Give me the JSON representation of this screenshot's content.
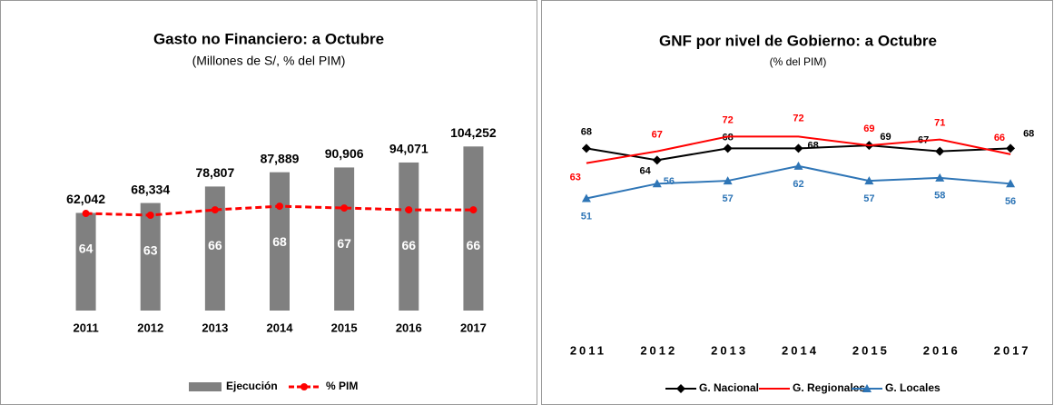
{
  "chart_data": [
    {
      "type": "bar",
      "title": "Gasto no Financiero: a Octubre",
      "subtitle": "(Millones de S/, % del PIM)",
      "categories": [
        "2011",
        "2012",
        "2013",
        "2014",
        "2015",
        "2016",
        "2017"
      ],
      "series": [
        {
          "name": "Ejecución",
          "type": "bar",
          "color": "#808080",
          "values": [
            62042,
            68334,
            78807,
            87889,
            90906,
            94071,
            104252
          ],
          "value_labels": [
            "62,042",
            "68,334",
            "78,807",
            "87,889",
            "90,906",
            "94,071",
            "104,252"
          ]
        },
        {
          "name": "% PIM",
          "type": "line",
          "axis": "y2",
          "color": "#ff0000",
          "line_style": "dashed",
          "marker": "circle",
          "values": [
            64,
            63,
            66,
            68,
            67,
            66,
            66
          ]
        }
      ],
      "ylim": [
        0,
        120000
      ],
      "y2lim": [
        10,
        115
      ],
      "legend": "bottom"
    },
    {
      "type": "line",
      "title": "GNF por nivel de Gobierno: a Octubre",
      "subtitle": "(% del PIM)",
      "categories": [
        "2011",
        "2012",
        "2013",
        "2014",
        "2015",
        "2016",
        "2017"
      ],
      "series": [
        {
          "name": "G. Nacional",
          "color": "#000000",
          "marker": "diamond",
          "values": [
            68,
            64,
            68,
            68,
            69,
            67,
            68
          ]
        },
        {
          "name": "G. Regionales",
          "color": "#ff0000",
          "marker": "none",
          "values": [
            63,
            67,
            72,
            72,
            69,
            71,
            66
          ]
        },
        {
          "name": "G. Locales",
          "color": "#2e75b6",
          "marker": "triangle",
          "values": [
            51,
            56,
            57,
            62,
            57,
            58,
            56
          ]
        }
      ],
      "ylim": [
        0,
        90
      ],
      "legend": "bottom"
    }
  ]
}
